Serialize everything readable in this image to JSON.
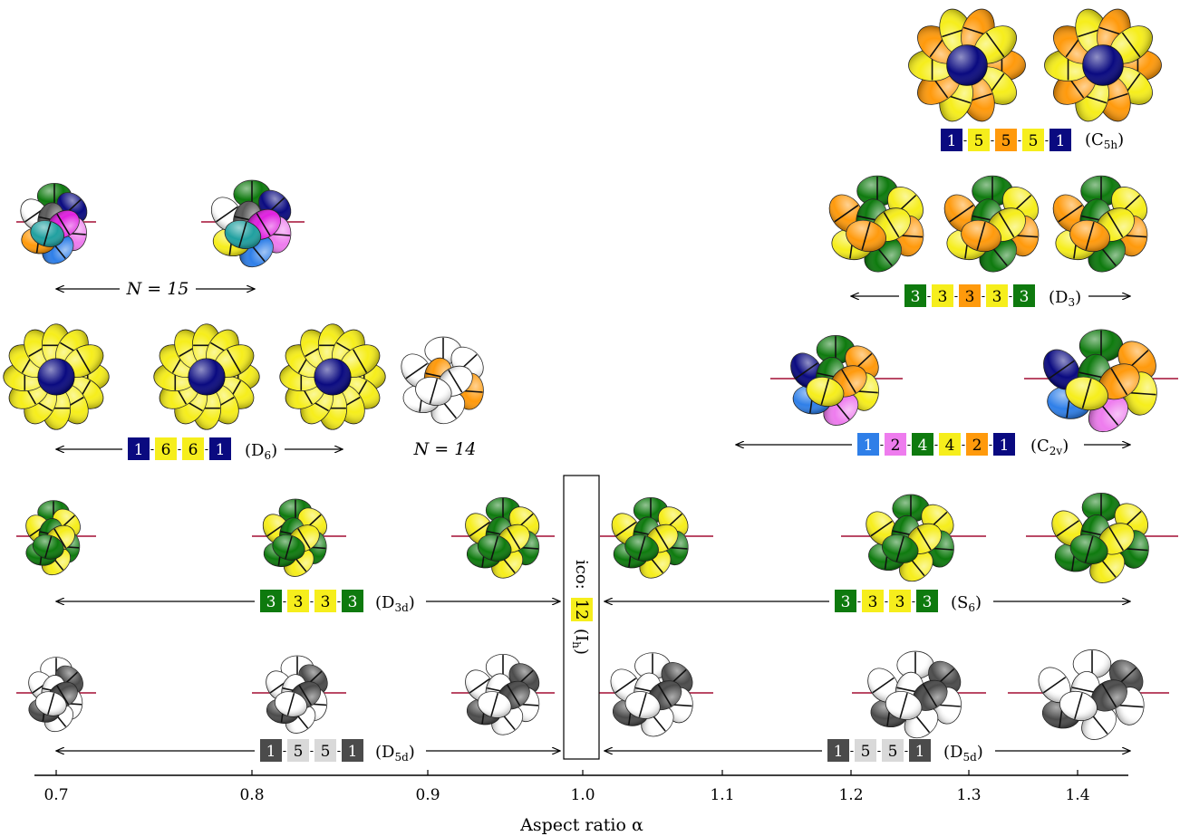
{
  "colors": {
    "navy": "#0a0a80",
    "yellow": "#f6ee1c",
    "orange": "#ff9a0c",
    "green": "#0e7a0e",
    "light_blue": "#2f7fe8",
    "pink": "#ee7cee",
    "dark_gray": "#4b4b4b",
    "light_gray": "#d9d9d9",
    "white": "#ffffff",
    "axis_line": "#000000",
    "guide_line": "#b03050"
  },
  "axis": {
    "label": "Aspect ratio α",
    "ticks": [
      "0.7",
      "0.8",
      "0.9",
      "1.0",
      "1.1",
      "1.2",
      "1.3",
      "1.4"
    ]
  },
  "ico": {
    "prefix": "ico:",
    "number": "12",
    "symmetry": "(Ih)"
  },
  "rows": [
    {
      "id": "c5h",
      "sequence": [
        "1",
        "5",
        "5",
        "5",
        "1"
      ],
      "sequence_colors": [
        "navy",
        "yellow",
        "orange",
        "yellow",
        "navy"
      ],
      "symmetry": "(C5h)",
      "clusters": [
        {
          "layout": "flower",
          "petals": 10,
          "petal_colors": [
            "orange",
            "yellow"
          ],
          "center": "navy"
        },
        {
          "layout": "flower",
          "petals": 10,
          "petal_colors": [
            "orange",
            "yellow"
          ],
          "center": "navy"
        }
      ]
    },
    {
      "id": "n15",
      "label": "N = 15",
      "clusters": [
        {
          "layout": "mixed",
          "colors": [
            "green",
            "navy",
            "pink",
            "light_blue",
            "orange",
            "white",
            "gray",
            "magenta",
            "teal"
          ]
        },
        {
          "layout": "mixed",
          "colors": [
            "green",
            "navy",
            "pink",
            "light_blue",
            "yellow",
            "white",
            "gray",
            "magenta",
            "teal"
          ]
        }
      ]
    },
    {
      "id": "d3",
      "sequence": [
        "3",
        "3",
        "3",
        "3",
        "3"
      ],
      "sequence_colors": [
        "green",
        "yellow",
        "orange",
        "yellow",
        "green"
      ],
      "symmetry": "(D3)",
      "clusters": [
        {
          "layout": "mixed",
          "colors": [
            "green",
            "yellow",
            "orange"
          ]
        },
        {
          "layout": "mixed",
          "colors": [
            "green",
            "yellow",
            "orange"
          ]
        },
        {
          "layout": "mixed",
          "colors": [
            "green",
            "yellow",
            "orange"
          ]
        }
      ]
    },
    {
      "id": "d6",
      "sequence": [
        "1",
        "6",
        "6",
        "1"
      ],
      "sequence_colors": [
        "navy",
        "yellow",
        "yellow",
        "navy"
      ],
      "symmetry": "(D6)",
      "clusters": [
        {
          "layout": "flower",
          "petals": 12,
          "petal_colors": [
            "yellow"
          ],
          "center": "navy"
        },
        {
          "layout": "flower",
          "petals": 12,
          "petal_colors": [
            "yellow"
          ],
          "center": "navy"
        },
        {
          "layout": "flower",
          "petals": 12,
          "petal_colors": [
            "yellow"
          ],
          "center": "navy"
        }
      ]
    },
    {
      "id": "n14",
      "label": "N = 14",
      "clusters": [
        {
          "layout": "mixed",
          "colors": [
            "white",
            "white",
            "orange"
          ]
        }
      ]
    },
    {
      "id": "c2v",
      "sequence": [
        "1",
        "2",
        "4",
        "4",
        "2",
        "1"
      ],
      "sequence_colors": [
        "light_blue",
        "pink",
        "green",
        "yellow",
        "orange",
        "navy"
      ],
      "symmetry": "(C2v)",
      "clusters": [
        {
          "layout": "mixed",
          "colors": [
            "light_blue",
            "pink",
            "green",
            "yellow",
            "orange",
            "navy"
          ]
        },
        {
          "layout": "mixed",
          "colors": [
            "light_blue",
            "pink",
            "green",
            "yellow",
            "orange",
            "navy"
          ]
        }
      ]
    },
    {
      "id": "d3d",
      "sequence": [
        "3",
        "3",
        "3",
        "3"
      ],
      "sequence_colors": [
        "green",
        "yellow",
        "yellow",
        "green"
      ],
      "symmetry": "(D3d)",
      "clusters": [
        {
          "layout": "mixed",
          "colors": [
            "green",
            "yellow"
          ]
        },
        {
          "layout": "mixed",
          "colors": [
            "green",
            "yellow"
          ]
        },
        {
          "layout": "mixed",
          "colors": [
            "green",
            "yellow"
          ]
        }
      ]
    },
    {
      "id": "s6",
      "sequence": [
        "3",
        "3",
        "3",
        "3"
      ],
      "sequence_colors": [
        "green",
        "yellow",
        "yellow",
        "green"
      ],
      "symmetry": "(S6)",
      "clusters": [
        {
          "layout": "mixed",
          "colors": [
            "green",
            "yellow"
          ]
        },
        {
          "layout": "mixed",
          "colors": [
            "green",
            "yellow"
          ]
        },
        {
          "layout": "mixed",
          "colors": [
            "green",
            "yellow"
          ]
        }
      ]
    },
    {
      "id": "d5d_left",
      "sequence": [
        "1",
        "5",
        "5",
        "1"
      ],
      "sequence_colors": [
        "dark_gray",
        "light_gray",
        "light_gray",
        "dark_gray"
      ],
      "symmetry": "(D5d)",
      "clusters": [
        {
          "layout": "mixed",
          "colors": [
            "white",
            "dark_gray"
          ]
        },
        {
          "layout": "mixed",
          "colors": [
            "white",
            "dark_gray"
          ]
        },
        {
          "layout": "mixed",
          "colors": [
            "white",
            "dark_gray"
          ]
        }
      ]
    },
    {
      "id": "d5d_right",
      "sequence": [
        "1",
        "5",
        "5",
        "1"
      ],
      "sequence_colors": [
        "dark_gray",
        "light_gray",
        "light_gray",
        "dark_gray"
      ],
      "symmetry": "(D5d)",
      "clusters": [
        {
          "layout": "mixed",
          "colors": [
            "white",
            "dark_gray"
          ]
        },
        {
          "layout": "mixed",
          "colors": [
            "white",
            "dark_gray"
          ]
        },
        {
          "layout": "mixed",
          "colors": [
            "white",
            "dark_gray"
          ]
        }
      ]
    }
  ]
}
